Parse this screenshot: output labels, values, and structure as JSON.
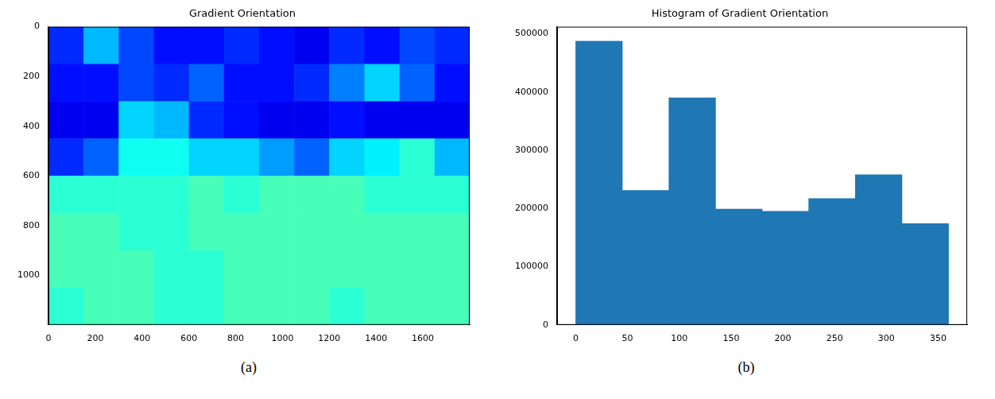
{
  "chart_data": [
    {
      "type": "heatmap",
      "title": "Gradient Orientation",
      "caption": "(a)",
      "x_edges": [
        0,
        150,
        300,
        450,
        600,
        750,
        900,
        1050,
        1200,
        1350,
        1500,
        1650,
        1800
      ],
      "y_edges": [
        0,
        150,
        300,
        450,
        600,
        750,
        900,
        1050,
        1200
      ],
      "cells": [
        [
          60,
          110,
          70,
          50,
          50,
          60,
          50,
          40,
          60,
          50,
          70,
          60
        ],
        [
          50,
          50,
          70,
          60,
          80,
          50,
          50,
          60,
          90,
          120,
          80,
          50
        ],
        [
          40,
          40,
          120,
          110,
          60,
          50,
          40,
          40,
          50,
          40,
          40,
          40
        ],
        [
          60,
          80,
          140,
          140,
          120,
          120,
          100,
          80,
          120,
          130,
          150,
          110
        ],
        [
          150,
          150,
          150,
          150,
          160,
          150,
          160,
          160,
          160,
          150,
          150,
          150
        ],
        [
          160,
          160,
          150,
          150,
          160,
          160,
          160,
          160,
          160,
          160,
          160,
          160
        ],
        [
          160,
          160,
          160,
          150,
          150,
          160,
          160,
          160,
          160,
          160,
          160,
          160
        ],
        [
          150,
          160,
          160,
          150,
          150,
          160,
          160,
          160,
          150,
          160,
          160,
          160
        ]
      ],
      "color_range": [
        0,
        360
      ],
      "xlim": [
        0,
        1800
      ],
      "xticks": [
        0,
        200,
        400,
        600,
        800,
        1000,
        1200,
        1400,
        1600
      ],
      "ylim": [
        1200,
        0
      ],
      "yticks": [
        0,
        200,
        400,
        600,
        800,
        1000
      ],
      "grid": false
    },
    {
      "type": "histogram",
      "title": "Histogram of Gradient Orientation",
      "caption": "(b)",
      "bins": [
        0,
        45,
        90,
        135,
        180,
        225,
        270,
        315,
        360
      ],
      "counts": [
        487000,
        231000,
        390000,
        199000,
        195000,
        217000,
        258000,
        174000
      ],
      "color": "#1f77b4",
      "xlim": [
        -18,
        378
      ],
      "xticks": [
        0,
        50,
        100,
        150,
        200,
        250,
        300,
        350
      ],
      "ylim": [
        0,
        512000
      ],
      "yticks": [
        0,
        100000,
        200000,
        300000,
        400000,
        500000
      ],
      "grid": false
    }
  ]
}
